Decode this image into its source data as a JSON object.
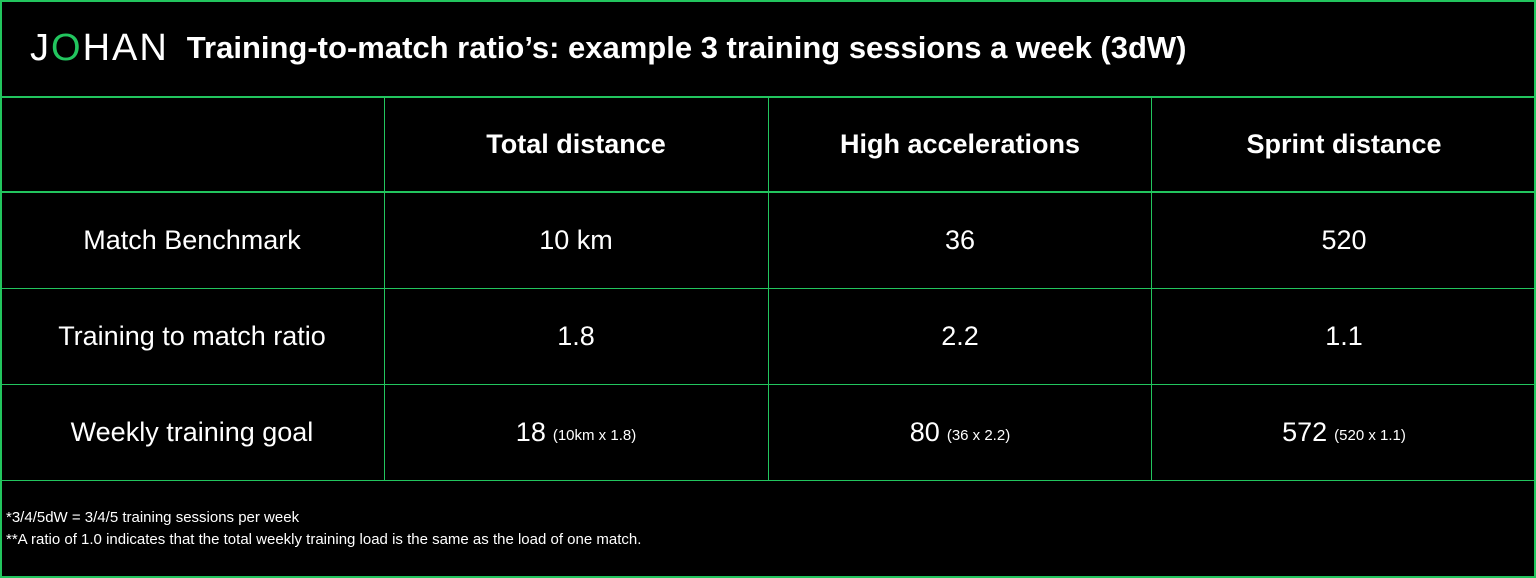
{
  "header": {
    "logo": {
      "before": "J",
      "accent": "O",
      "after": "HAN"
    },
    "title": "Training-to-match ratio’s: example 3 training sessions a week (3dW)"
  },
  "table": {
    "columns": [
      "Total distance",
      "High accelerations",
      "Sprint distance"
    ],
    "rows": [
      {
        "label": "Match Benchmark",
        "cells": [
          {
            "value": "10 km"
          },
          {
            "value": "36"
          },
          {
            "value": "520"
          }
        ]
      },
      {
        "label": "Training to match ratio",
        "cells": [
          {
            "value": "1.8"
          },
          {
            "value": "2.2"
          },
          {
            "value": "1.1"
          }
        ]
      },
      {
        "label": "Weekly training goal",
        "cells": [
          {
            "value": "18",
            "note": "(10km x 1.8)"
          },
          {
            "value": "80",
            "note": "(36 x 2.2)"
          },
          {
            "value": "572",
            "note": "(520 x 1.1)"
          }
        ]
      }
    ]
  },
  "footnotes": [
    "*3/4/5dW = 3/4/5 training sessions per week",
    "**A ratio of 1.0 indicates that the total weekly training load is the same as the load of one match."
  ]
}
